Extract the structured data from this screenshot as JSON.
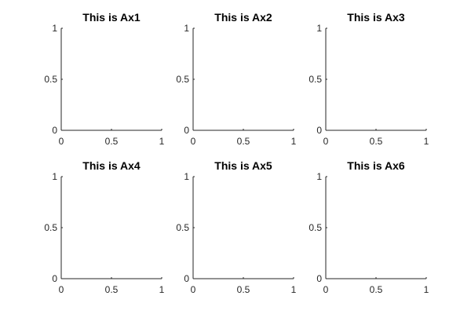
{
  "chart_data": [
    {
      "type": "line",
      "title": "This is Ax1",
      "xlim": [
        0,
        1
      ],
      "ylim": [
        0,
        1
      ],
      "xticks": [
        0,
        0.5,
        1
      ],
      "yticks": [
        0,
        0.5,
        1
      ]
    },
    {
      "type": "line",
      "title": "This is Ax2",
      "xlim": [
        0,
        1
      ],
      "ylim": [
        0,
        1
      ],
      "xticks": [
        0,
        0.5,
        1
      ],
      "yticks": [
        0,
        0.5,
        1
      ]
    },
    {
      "type": "line",
      "title": "This is Ax3",
      "xlim": [
        0,
        1
      ],
      "ylim": [
        0,
        1
      ],
      "xticks": [
        0,
        0.5,
        1
      ],
      "yticks": [
        0,
        0.5,
        1
      ]
    },
    {
      "type": "line",
      "title": "This is Ax4",
      "xlim": [
        0,
        1
      ],
      "ylim": [
        0,
        1
      ],
      "xticks": [
        0,
        0.5,
        1
      ],
      "yticks": [
        0,
        0.5,
        1
      ]
    },
    {
      "type": "line",
      "title": "This is Ax5",
      "xlim": [
        0,
        1
      ],
      "ylim": [
        0,
        1
      ],
      "xticks": [
        0,
        0.5,
        1
      ],
      "yticks": [
        0,
        0.5,
        1
      ]
    },
    {
      "type": "line",
      "title": "This is Ax6",
      "xlim": [
        0,
        1
      ],
      "ylim": [
        0,
        1
      ],
      "xticks": [
        0,
        0.5,
        1
      ],
      "yticks": [
        0,
        0.5,
        1
      ]
    }
  ]
}
